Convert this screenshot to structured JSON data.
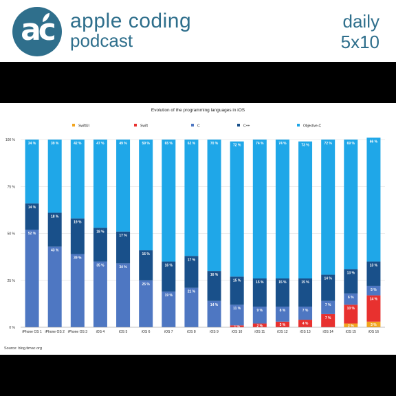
{
  "header": {
    "logo_text": "ac",
    "brand_line1": "apple coding",
    "brand_line2": "podcast",
    "daily_label": "daily",
    "episode_label": "5x10",
    "brand_color": "#2f6f8c"
  },
  "chart_data": {
    "type": "bar",
    "stacked": true,
    "title": "Evolution of the programming languages in iOS",
    "xlabel": "",
    "ylabel": "",
    "ylim": [
      0,
      100
    ],
    "ytick_labels": [
      "0 %",
      "25 %",
      "50 %",
      "75 %",
      "100 %"
    ],
    "grid": true,
    "legend_position": "top",
    "source": "Source: blog.timac.org",
    "categories": [
      "iPhone OS 1",
      "iPhone OS 2",
      "iPhone OS 3",
      "iOS 4",
      "iOS 5",
      "iOS 6",
      "iOS 7",
      "iOS 8",
      "iOS 9",
      "iOS 10",
      "iOS 11",
      "iOS 12",
      "iOS 13",
      "iOS 14",
      "iOS 15",
      "iOS 16"
    ],
    "series": [
      {
        "name": "SwiftUI",
        "color": "#f2a51f",
        "values": [
          0,
          0,
          0,
          0,
          0,
          0,
          0,
          0,
          0,
          0,
          0,
          0,
          0,
          0,
          2,
          3
        ],
        "labels": [
          "",
          "",
          "",
          "",
          "",
          "",
          "",
          "",
          "",
          "",
          "",
          "",
          "",
          "",
          "2 %",
          "3 %"
        ]
      },
      {
        "name": "Swift",
        "color": "#e8312f",
        "values": [
          0,
          0,
          0,
          0,
          0,
          0,
          0,
          0,
          0,
          1,
          2,
          3,
          4,
          7,
          10,
          14
        ],
        "labels": [
          "",
          "",
          "",
          "",
          "",
          "",
          "",
          "",
          "",
          "1 %",
          "2 %",
          "3 %",
          "4 %",
          "7 %",
          "10 %",
          "14 %"
        ]
      },
      {
        "name": "C",
        "color": "#4e77c2",
        "values": [
          52,
          43,
          39,
          35,
          34,
          25,
          19,
          21,
          14,
          11,
          9,
          8,
          7,
          7,
          6,
          5
        ],
        "labels": [
          "52 %",
          "43 %",
          "39 %",
          "35 %",
          "34 %",
          "25 %",
          "19 %",
          "21 %",
          "14 %",
          "11 %",
          "9 %",
          "8 %",
          "7 %",
          "7 %",
          "6 %",
          "5 %"
        ]
      },
      {
        "name": "C++",
        "color": "#19508a",
        "values": [
          14,
          18,
          19,
          18,
          17,
          16,
          16,
          17,
          16,
          15,
          15,
          15,
          15,
          14,
          13,
          13
        ],
        "labels": [
          "14 %",
          "18 %",
          "19 %",
          "18 %",
          "17 %",
          "16 %",
          "16 %",
          "17 %",
          "16 %",
          "15 %",
          "15 %",
          "15 %",
          "15 %",
          "14 %",
          "13 %",
          "13 %"
        ]
      },
      {
        "name": "Objective-C",
        "color": "#1fa7e8",
        "values": [
          34,
          39,
          42,
          47,
          49,
          59,
          65,
          62,
          70,
          72,
          74,
          74,
          73,
          72,
          69,
          66
        ],
        "labels": [
          "34 %",
          "39 %",
          "42 %",
          "47 %",
          "49 %",
          "59 %",
          "65 %",
          "62 %",
          "70 %",
          "72 %",
          "74 %",
          "74 %",
          "73 %",
          "72 %",
          "69 %",
          "66 %"
        ]
      }
    ]
  }
}
